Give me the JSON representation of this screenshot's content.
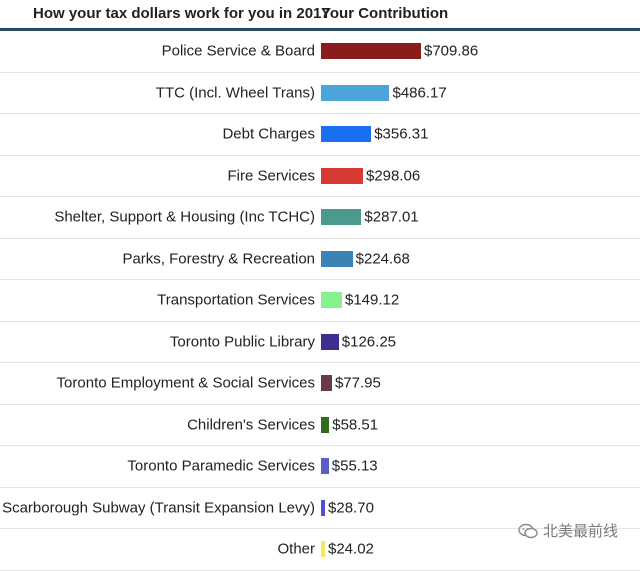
{
  "header": {
    "left_title": "How your tax dollars work for you in 2017",
    "right_title": "Your Contribution"
  },
  "colors": {
    "header_rule": "#2b4a63"
  },
  "chart_data": {
    "type": "bar",
    "orientation": "horizontal",
    "title": "How your tax dollars work for you in 2017",
    "categories": [
      "Police Service & Board",
      "TTC (Incl. Wheel Trans)",
      "Debt Charges",
      "Fire Services",
      "Shelter, Support & Housing (Inc TCHC)",
      "Parks, Forestry & Recreation",
      "Transportation Services",
      "Toronto Public Library",
      "Toronto Employment & Social Services",
      "Children's Services",
      "Toronto Paramedic Services",
      "Scarborough Subway (Transit Expansion Levy)",
      "Other"
    ],
    "values": [
      709.86,
      486.17,
      356.31,
      298.06,
      287.01,
      224.68,
      149.12,
      126.25,
      77.95,
      58.51,
      55.13,
      28.7,
      24.02
    ],
    "value_labels": [
      "$709.86",
      "$486.17",
      "$356.31",
      "$298.06",
      "$287.01",
      "$224.68",
      "$149.12",
      "$126.25",
      "$77.95",
      "$58.51",
      "$55.13",
      "$28.70",
      "$24.02"
    ],
    "bar_colors": [
      "#8b1c1c",
      "#4aa3d9",
      "#1a6ff0",
      "#d63b32",
      "#4a9b8e",
      "#3b82b5",
      "#86f28f",
      "#3d2f8f",
      "#6b3a48",
      "#2f6b1e",
      "#5a5fc4",
      "#4d4fd8",
      "#f2ea5a"
    ],
    "xlim": [
      0,
      709.86
    ],
    "xlabel": "",
    "ylabel": "",
    "legend": "none",
    "grid": false
  },
  "watermark": {
    "text": "北美最前线",
    "icon": "wechat-icon"
  }
}
